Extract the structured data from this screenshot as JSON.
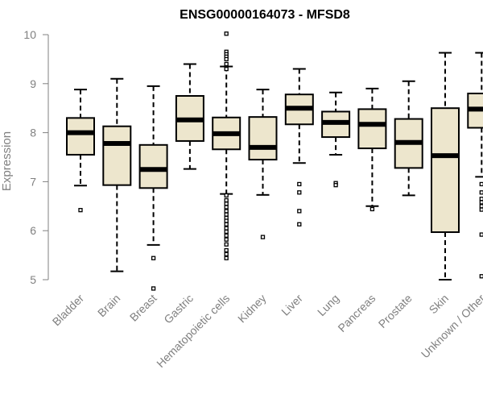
{
  "chart_data": {
    "type": "boxplot",
    "title": "ENSG00000164073 - MFSD8",
    "xlabel": "",
    "ylabel": "Expression",
    "ylim": [
      4.75,
      10.05
    ],
    "yticks": [
      5,
      6,
      7,
      8,
      9,
      10
    ],
    "colors": {
      "box_fill": "#EDE6CD",
      "stroke": "#000000",
      "axis": "#808080"
    },
    "series": [
      {
        "name": "Bladder",
        "whisker_low": 6.92,
        "q1": 7.55,
        "median": 8.0,
        "q3": 8.3,
        "whisker_high": 8.88,
        "outliers": [
          6.42
        ]
      },
      {
        "name": "Brain",
        "whisker_low": 5.17,
        "q1": 6.93,
        "median": 7.78,
        "q3": 8.13,
        "whisker_high": 9.1,
        "outliers": []
      },
      {
        "name": "Breast",
        "whisker_low": 5.71,
        "q1": 6.87,
        "median": 7.25,
        "q3": 7.75,
        "whisker_high": 8.95,
        "outliers": [
          5.44,
          4.82
        ]
      },
      {
        "name": "Gastric",
        "whisker_low": 7.26,
        "q1": 7.83,
        "median": 8.26,
        "q3": 8.75,
        "whisker_high": 9.4,
        "outliers": []
      },
      {
        "name": "Hematopoietic cells",
        "whisker_low": 6.75,
        "q1": 7.66,
        "median": 7.98,
        "q3": 8.31,
        "whisker_high": 9.35,
        "outliers": [
          10.02,
          9.65,
          9.6,
          9.55,
          9.5,
          9.4,
          9.3,
          6.72,
          6.62,
          6.55,
          6.48,
          6.4,
          6.33,
          6.26,
          6.2,
          6.13,
          6.05,
          5.98,
          5.9,
          5.82,
          5.72,
          5.6,
          5.52,
          5.44
        ]
      },
      {
        "name": "Kidney",
        "whisker_low": 6.73,
        "q1": 7.45,
        "median": 7.7,
        "q3": 8.32,
        "whisker_high": 8.88,
        "outliers": [
          5.87
        ]
      },
      {
        "name": "Liver",
        "whisker_low": 7.38,
        "q1": 8.17,
        "median": 8.5,
        "q3": 8.78,
        "whisker_high": 9.3,
        "outliers": [
          6.95,
          6.78,
          6.4,
          6.13
        ]
      },
      {
        "name": "Lung",
        "whisker_low": 7.55,
        "q1": 7.91,
        "median": 8.21,
        "q3": 8.43,
        "whisker_high": 8.82,
        "outliers": [
          6.97,
          6.93
        ]
      },
      {
        "name": "Pancreas",
        "whisker_low": 6.5,
        "q1": 7.68,
        "median": 8.17,
        "q3": 8.48,
        "whisker_high": 8.9,
        "outliers": [
          6.44
        ]
      },
      {
        "name": "Prostate",
        "whisker_low": 6.72,
        "q1": 7.28,
        "median": 7.8,
        "q3": 8.28,
        "whisker_high": 9.05,
        "outliers": []
      },
      {
        "name": "Skin",
        "whisker_low": 5.0,
        "q1": 5.97,
        "median": 7.53,
        "q3": 8.5,
        "whisker_high": 9.63,
        "outliers": []
      },
      {
        "name": "Unknown / Other",
        "whisker_low": 7.1,
        "q1": 8.1,
        "median": 8.48,
        "q3": 8.8,
        "whisker_high": 9.63,
        "outliers": [
          6.95,
          6.78,
          6.65,
          6.58,
          6.5,
          6.43,
          5.92,
          5.07
        ]
      }
    ]
  }
}
